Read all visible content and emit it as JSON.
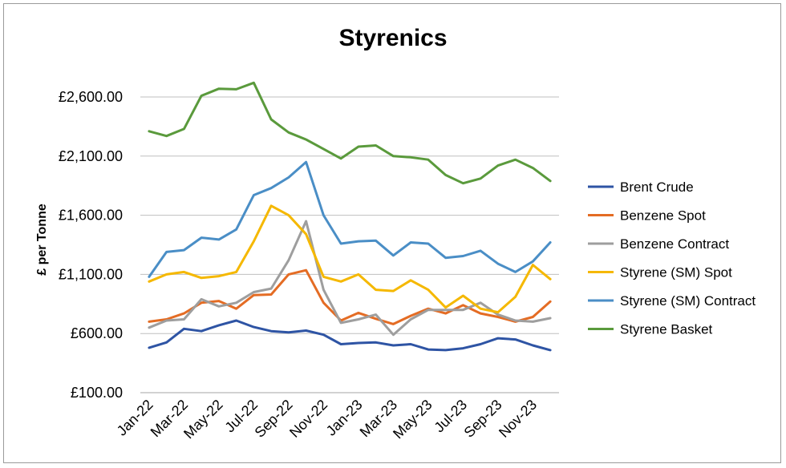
{
  "chart_data": {
    "type": "line",
    "title": "Styrenics",
    "xlabel": "",
    "ylabel": "£ per Tonne",
    "ylim": [
      100,
      2600
    ],
    "yticks": [
      "£100.00",
      "£600.00",
      "£1,100.00",
      "£1,600.00",
      "£2,100.00",
      "£2,600.00"
    ],
    "ytick_values": [
      100,
      600,
      1100,
      1600,
      2100,
      2600
    ],
    "grid": true,
    "legend_position": "right",
    "x": [
      "Jan-22",
      "Feb-22",
      "Mar-22",
      "Apr-22",
      "May-22",
      "Jun-22",
      "Jul-22",
      "Aug-22",
      "Sep-22",
      "Oct-22",
      "Nov-22",
      "Dec-22",
      "Jan-23",
      "Feb-23",
      "Mar-23",
      "Apr-23",
      "May-23",
      "Jun-23",
      "Jul-23",
      "Aug-23",
      "Sep-23",
      "Oct-23",
      "Nov-23",
      "Dec-23"
    ],
    "x_tick_labels": [
      "Jan-22",
      "",
      "Mar-22",
      "",
      "May-22",
      "",
      "Jul-22",
      "",
      "Sep-22",
      "",
      "Nov-22",
      "",
      "Jan-23",
      "",
      "Mar-23",
      "",
      "May-23",
      "",
      "Jul-23",
      "",
      "Sep-23",
      "",
      "Nov-23",
      ""
    ],
    "series": [
      {
        "name": "Brent Crude",
        "color": "#2e54a4",
        "values": [
          480,
          525,
          640,
          620,
          670,
          710,
          655,
          620,
          610,
          625,
          590,
          510,
          520,
          525,
          500,
          510,
          465,
          460,
          475,
          510,
          560,
          550,
          500,
          460
        ]
      },
      {
        "name": "Benzene Spot",
        "color": "#e46c24",
        "values": [
          700,
          720,
          770,
          860,
          875,
          810,
          925,
          930,
          1100,
          1135,
          860,
          710,
          775,
          725,
          680,
          750,
          810,
          770,
          840,
          770,
          740,
          700,
          740,
          870
        ]
      },
      {
        "name": "Benzene Contract",
        "color": "#9e9e9e",
        "values": [
          650,
          710,
          720,
          890,
          830,
          860,
          950,
          980,
          1220,
          1550,
          970,
          690,
          720,
          760,
          590,
          720,
          800,
          800,
          800,
          860,
          760,
          710,
          700,
          730
        ]
      },
      {
        "name": "Styrene (SM) Spot",
        "color": "#f5b800",
        "values": [
          1040,
          1100,
          1120,
          1070,
          1085,
          1120,
          1380,
          1680,
          1600,
          1440,
          1080,
          1040,
          1100,
          970,
          960,
          1050,
          970,
          820,
          920,
          810,
          780,
          910,
          1180,
          1060
        ]
      },
      {
        "name": "Styrene (SM) Contract",
        "color": "#4a8ec6",
        "values": [
          1080,
          1290,
          1305,
          1410,
          1395,
          1480,
          1770,
          1830,
          1920,
          2050,
          1600,
          1360,
          1380,
          1385,
          1260,
          1370,
          1360,
          1240,
          1255,
          1300,
          1190,
          1120,
          1210,
          1370
        ]
      },
      {
        "name": "Styrene Basket",
        "color": "#5a9a3c",
        "values": [
          2310,
          2270,
          2330,
          2610,
          2670,
          2665,
          2720,
          2410,
          2300,
          2240,
          2160,
          2080,
          2180,
          2190,
          2100,
          2090,
          2070,
          1940,
          1870,
          1910,
          2020,
          2070,
          2000,
          1890
        ]
      }
    ]
  }
}
